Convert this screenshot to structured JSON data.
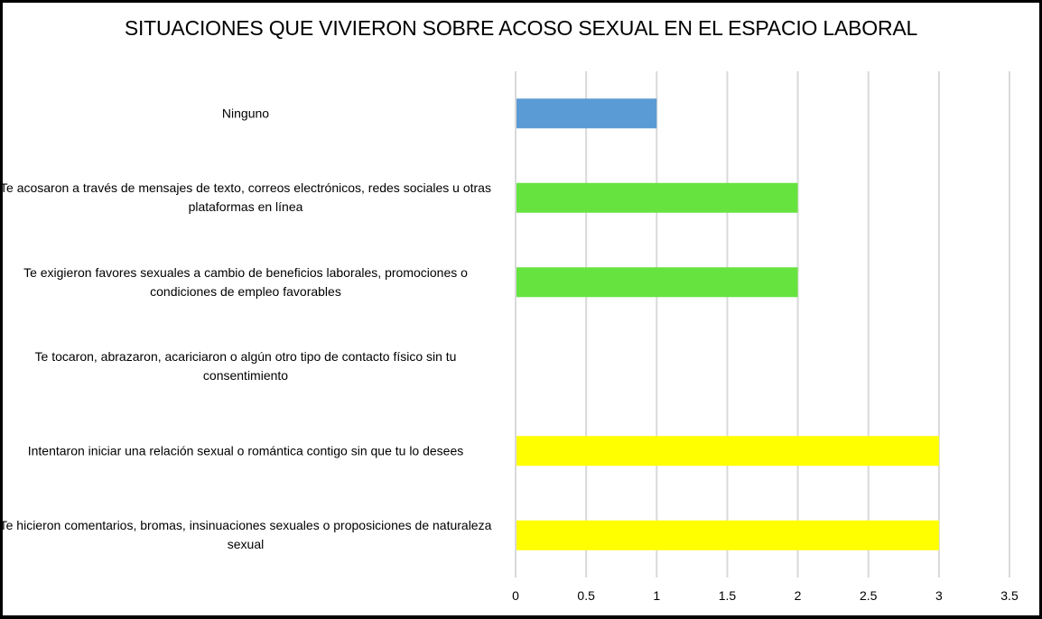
{
  "chart_data": {
    "type": "bar",
    "orientation": "horizontal",
    "title": "SITUACIONES QUE VIVIERON SOBRE ACOSO SEXUAL EN EL ESPACIO LABORAL",
    "xlabel": "",
    "ylabel": "",
    "xlim": [
      0,
      3.5
    ],
    "xticks": [
      "0",
      "0.5",
      "1",
      "1.5",
      "2",
      "2.5",
      "3",
      "3.5"
    ],
    "xtick_values": [
      0,
      0.5,
      1,
      1.5,
      2,
      2.5,
      3,
      3.5
    ],
    "grid": "vertical",
    "legend": "none",
    "categories": [
      "Ninguno",
      "Te acosaron a través de mensajes de texto, correos electrónicos, redes sociales u otras plataformas en línea",
      "Te exigieron favores sexuales a cambio de beneficios laborales, promociones o condiciones de empleo favorables",
      "Te tocaron, abrazaron, acariciaron o algún otro tipo de contacto físico sin tu consentimiento",
      "Intentaron iniciar una relación sexual o romántica contigo sin que tu lo desees",
      "Te hicieron comentarios, bromas, insinuaciones sexuales o proposiciones de naturaleza sexual"
    ],
    "values": [
      1,
      2,
      2,
      0,
      3,
      3
    ],
    "colors": [
      "#5b9bd5",
      "#66e33f",
      "#66e33f",
      "#66e33f",
      "#ffff00",
      "#ffff00"
    ]
  },
  "colors": {
    "grid": "#d9d9d9",
    "border": "#000000"
  }
}
